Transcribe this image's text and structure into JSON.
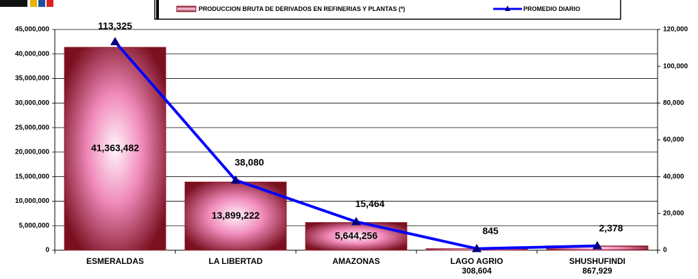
{
  "chart_data": {
    "type": "bar_line",
    "categories": [
      "ESMERALDAS",
      "LA LIBERTAD",
      "AMAZONAS",
      "LAGO AGRIO",
      "SHUSHUFINDI"
    ],
    "series": [
      {
        "name": "PRODUCCION BRUTA DE DERIVADOS EN REFINERIAS Y PLANTAS (*)",
        "type": "bar",
        "color": "#8b1a2a",
        "values": [
          41363482,
          13899222,
          5644256,
          308604,
          867929
        ],
        "value_labels": [
          "41,363,482",
          "13,899,222",
          "5,644,256",
          "308,604",
          "867,929"
        ]
      },
      {
        "name": "PROMEDIO DIARIO",
        "type": "line",
        "axis": "y2",
        "color": "#0000ff",
        "values": [
          113325,
          38080,
          15464,
          845,
          2378
        ],
        "value_labels": [
          "113,325",
          "38,080",
          "15,464",
          "845",
          "2,378"
        ]
      }
    ],
    "ylim": [
      0,
      45000000
    ],
    "yticks": [
      0,
      {
        "value": 5000000,
        "label": "5,000,000"
      },
      {
        "value": 10000000,
        "label": "10,000,000"
      },
      {
        "value": 15000000,
        "label": "15,000,000"
      },
      {
        "value": 20000000,
        "label": "20,000,000"
      },
      {
        "value": 25000000,
        "label": "25,000,000"
      },
      {
        "value": 30000000,
        "label": "30,000,000"
      },
      {
        "value": 35000000,
        "label": "35,000,000"
      },
      {
        "value": 40000000,
        "label": "40,000,000"
      },
      {
        "value": 45000000,
        "label": "45,000,000"
      }
    ],
    "y2lim": [
      0,
      120000
    ],
    "y2ticks": [
      0,
      {
        "value": 20000,
        "label": "20,000"
      },
      {
        "value": 40000,
        "label": "40,000"
      },
      {
        "value": 60000,
        "label": "60,000"
      },
      {
        "value": 80000,
        "label": "80,000"
      },
      {
        "value": 100000,
        "label": "100,000"
      },
      {
        "value": 120000,
        "label": "120,000"
      }
    ],
    "grid": true,
    "legend": "top"
  }
}
